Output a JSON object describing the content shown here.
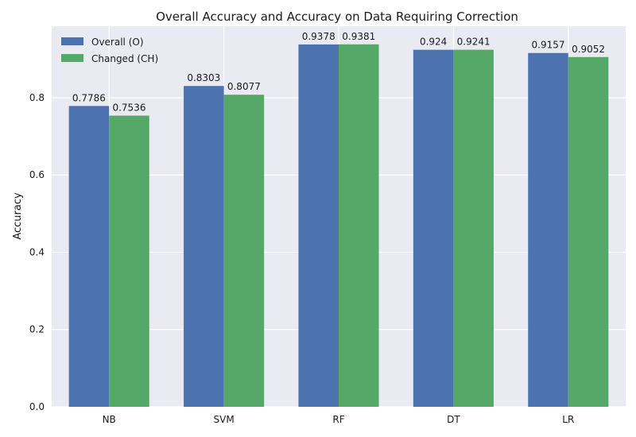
{
  "chart_data": {
    "type": "bar",
    "title": "Overall Accuracy and Accuracy on Data Requiring Correction",
    "xlabel": "",
    "ylabel": "Accuracy",
    "categories": [
      "NB",
      "SVM",
      "RF",
      "DT",
      "LR"
    ],
    "series": [
      {
        "name": "Overall (O)",
        "color": "#4c72b0",
        "values": [
          0.7786,
          0.8303,
          0.9378,
          0.924,
          0.9157
        ]
      },
      {
        "name": "Changed (CH)",
        "color": "#55a868",
        "values": [
          0.7536,
          0.8077,
          0.9381,
          0.9241,
          0.9052
        ]
      }
    ],
    "ylim": [
      0,
      0.985
    ],
    "yticks": [
      0.0,
      0.2,
      0.4,
      0.6,
      0.8
    ],
    "ytick_labels": [
      "0.0",
      "0.2",
      "0.4",
      "0.6",
      "0.8"
    ],
    "data_labels": [
      [
        "0.7786",
        "0.8303",
        "0.9378",
        "0.924",
        "0.9157"
      ],
      [
        "0.7536",
        "0.8077",
        "0.9381",
        "0.9241",
        "0.9052"
      ]
    ],
    "grid": true,
    "legend_position": "top-left",
    "background_color": "#eaeaf2",
    "grid_color": "#ffffff"
  }
}
